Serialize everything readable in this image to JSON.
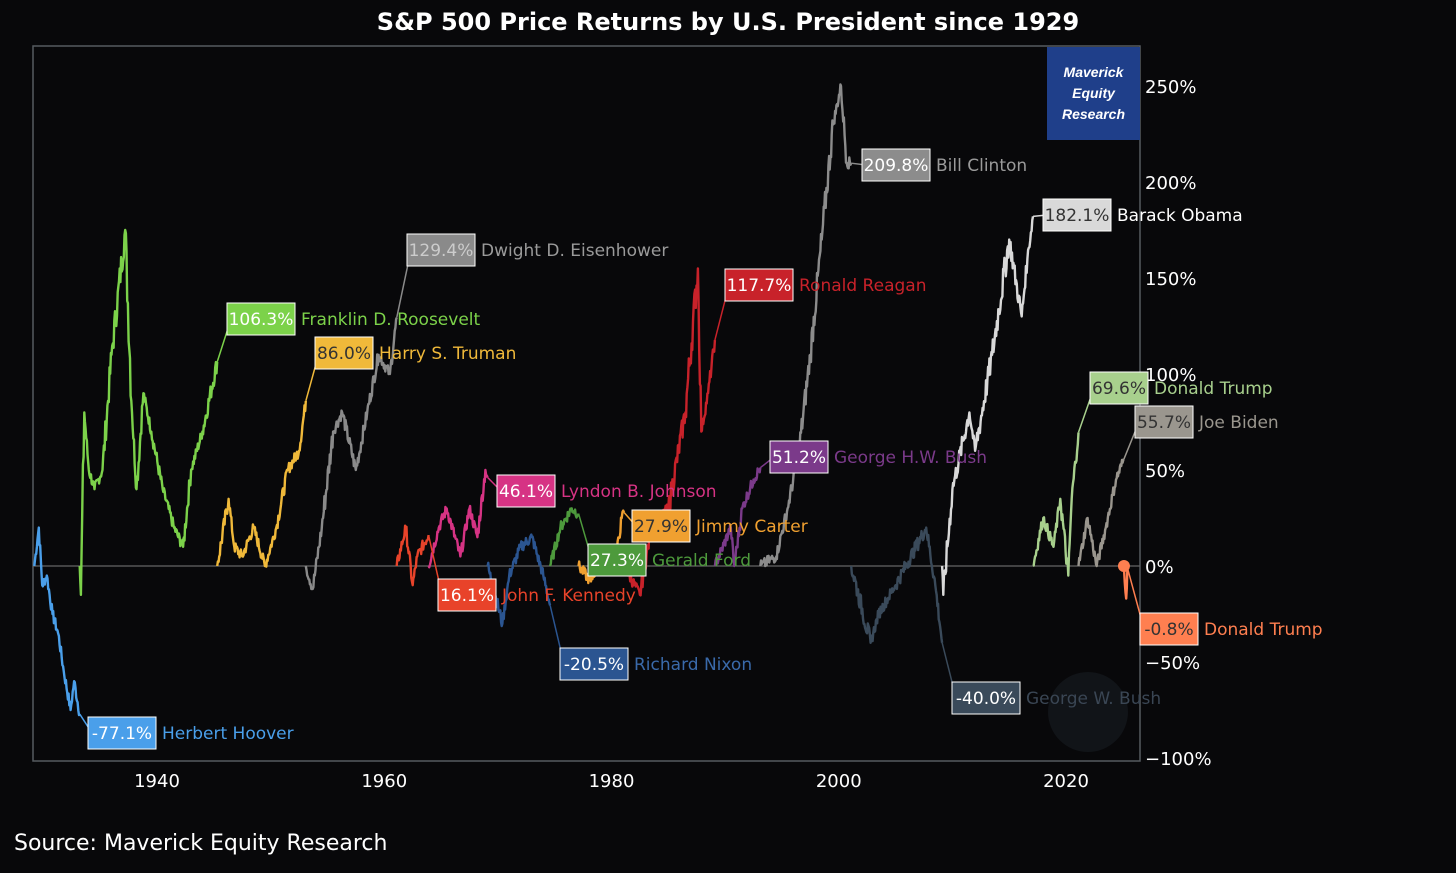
{
  "chart_data": {
    "type": "line",
    "title": "S&P 500 Price Returns by U.S. President since 1929",
    "source": "Source: Maverick Equity Research",
    "logo_text": "Maverick Equity Research",
    "xlabel": "",
    "ylabel": "",
    "xlim": [
      1929.1,
      2026.5
    ],
    "ylim": [
      -100,
      260
    ],
    "x_ticks": [
      {
        "v": 1940,
        "label": "1940"
      },
      {
        "v": 1960,
        "label": "1960"
      },
      {
        "v": 1980,
        "label": "1980"
      },
      {
        "v": 2000,
        "label": "2000"
      },
      {
        "v": 2020,
        "label": "2020"
      }
    ],
    "y_ticks": [
      {
        "v": 250,
        "label": "250%"
      },
      {
        "v": 200,
        "label": "200%"
      },
      {
        "v": 150,
        "label": "150%"
      },
      {
        "v": 100,
        "label": "100%"
      },
      {
        "v": 50,
        "label": "50%"
      },
      {
        "v": 0,
        "label": "0%"
      },
      {
        "v": -50,
        "label": "−50%"
      },
      {
        "v": -100,
        "label": "−100%"
      }
    ],
    "series": [
      {
        "name": "Herbert Hoover",
        "return_label": "-77.1%",
        "final": -77.1,
        "color": "#4a9fea",
        "points": [
          [
            1929.2,
            0
          ],
          [
            1929.6,
            20
          ],
          [
            1929.9,
            -10
          ],
          [
            1930.3,
            -5
          ],
          [
            1930.8,
            -25
          ],
          [
            1931.3,
            -35
          ],
          [
            1931.8,
            -55
          ],
          [
            1932.4,
            -75
          ],
          [
            1932.7,
            -60
          ],
          [
            1933.2,
            -77.1
          ]
        ]
      },
      {
        "name": "Franklin D. Roosevelt",
        "return_label": "106.3%",
        "final": 106.3,
        "color": "#7cd24a",
        "points": [
          [
            1933.2,
            0
          ],
          [
            1933.3,
            -15
          ],
          [
            1933.6,
            80
          ],
          [
            1934,
            50
          ],
          [
            1934.5,
            40
          ],
          [
            1935.2,
            50
          ],
          [
            1936,
            110
          ],
          [
            1937.2,
            175
          ],
          [
            1937.8,
            80
          ],
          [
            1938.2,
            40
          ],
          [
            1938.8,
            90
          ],
          [
            1939.5,
            70
          ],
          [
            1940.5,
            40
          ],
          [
            1941.5,
            20
          ],
          [
            1942.3,
            10
          ],
          [
            1943,
            50
          ],
          [
            1944,
            70
          ],
          [
            1945.3,
            106.3
          ]
        ]
      },
      {
        "name": "Harry S. Truman",
        "return_label": "86.0%",
        "final": 86.0,
        "color": "#f0b93a",
        "points": [
          [
            1945.3,
            0
          ],
          [
            1946.3,
            35
          ],
          [
            1946.8,
            10
          ],
          [
            1947.5,
            5
          ],
          [
            1948.5,
            20
          ],
          [
            1949.5,
            0
          ],
          [
            1950.5,
            20
          ],
          [
            1951.5,
            50
          ],
          [
            1952.5,
            60
          ],
          [
            1953.1,
            86
          ]
        ]
      },
      {
        "name": "Dwight D. Eisenhower",
        "return_label": "129.4%",
        "final": 129.4,
        "color": "#8a8a8a",
        "points": [
          [
            1953.1,
            0
          ],
          [
            1953.7,
            -12
          ],
          [
            1954.5,
            20
          ],
          [
            1955.5,
            70
          ],
          [
            1956.3,
            80
          ],
          [
            1957.5,
            50
          ],
          [
            1958.5,
            80
          ],
          [
            1959.5,
            110
          ],
          [
            1960.5,
            100
          ],
          [
            1961.1,
            129.4
          ]
        ]
      },
      {
        "name": "John F. Kennedy",
        "return_label": "16.1%",
        "final": 16.1,
        "color": "#e8432a",
        "points": [
          [
            1961.1,
            0
          ],
          [
            1961.9,
            20
          ],
          [
            1962.5,
            -10
          ],
          [
            1962.9,
            5
          ],
          [
            1963.9,
            16.1
          ]
        ]
      },
      {
        "name": "Lyndon B. Johnson",
        "return_label": "46.1%",
        "final": 46.1,
        "color": "#d63384",
        "points": [
          [
            1963.9,
            0
          ],
          [
            1964.8,
            20
          ],
          [
            1965.5,
            30
          ],
          [
            1966.7,
            5
          ],
          [
            1967.5,
            30
          ],
          [
            1968.2,
            15
          ],
          [
            1968.9,
            50
          ],
          [
            1969.1,
            46.1
          ]
        ]
      },
      {
        "name": "Richard Nixon",
        "return_label": "-20.5%",
        "final": -20.5,
        "color": "#2b5591",
        "points": [
          [
            1969.1,
            0
          ],
          [
            1970.4,
            -30
          ],
          [
            1971,
            -5
          ],
          [
            1972,
            10
          ],
          [
            1973,
            15
          ],
          [
            1974,
            -5
          ],
          [
            1974.6,
            -20.5
          ]
        ]
      },
      {
        "name": "Gerald Ford",
        "return_label": "27.3%",
        "final": 27.3,
        "color": "#4d9a3c",
        "points": [
          [
            1974.6,
            0
          ],
          [
            1975.5,
            20
          ],
          [
            1976.5,
            30
          ],
          [
            1977.1,
            27.3
          ]
        ]
      },
      {
        "name": "Jimmy Carter",
        "return_label": "27.9%",
        "final": 27.9,
        "color": "#f0a030",
        "points": [
          [
            1977.1,
            0
          ],
          [
            1978.2,
            -8
          ],
          [
            1979,
            5
          ],
          [
            1980.3,
            0
          ],
          [
            1980.9,
            25
          ],
          [
            1981.1,
            27.9
          ]
        ]
      },
      {
        "name": "Ronald Reagan",
        "return_label": "117.7%",
        "final": 117.7,
        "color": "#c8222a",
        "points": [
          [
            1981.1,
            0
          ],
          [
            1982.5,
            -15
          ],
          [
            1983.5,
            20
          ],
          [
            1985,
            30
          ],
          [
            1986.5,
            80
          ],
          [
            1987.6,
            155
          ],
          [
            1987.9,
            70
          ],
          [
            1988.5,
            90
          ],
          [
            1989.1,
            117.7
          ]
        ]
      },
      {
        "name": "George H.W. Bush",
        "return_label": "51.2%",
        "final": 51.2,
        "color": "#7b3a8a",
        "points": [
          [
            1989.1,
            0
          ],
          [
            1990.5,
            20
          ],
          [
            1990.8,
            0
          ],
          [
            1991.5,
            30
          ],
          [
            1992.5,
            45
          ],
          [
            1993.1,
            51.2
          ]
        ]
      },
      {
        "name": "Bill Clinton",
        "return_label": "209.8%",
        "final": 209.8,
        "color": "#8c8c8c",
        "points": [
          [
            1993.1,
            0
          ],
          [
            1994.5,
            5
          ],
          [
            1995.5,
            30
          ],
          [
            1996.5,
            60
          ],
          [
            1997.5,
            110
          ],
          [
            1998.5,
            170
          ],
          [
            1999.5,
            230
          ],
          [
            2000.2,
            250
          ],
          [
            2000.7,
            210
          ],
          [
            2001.1,
            209.8
          ]
        ]
      },
      {
        "name": "George W. Bush",
        "return_label": "-40.0%",
        "final": -40.0,
        "color": "#3a4a5a",
        "points": [
          [
            2001.1,
            0
          ],
          [
            2002.8,
            -40
          ],
          [
            2003.5,
            -25
          ],
          [
            2005,
            -10
          ],
          [
            2007.7,
            20
          ],
          [
            2008.5,
            -10
          ],
          [
            2009.1,
            -40
          ]
        ]
      },
      {
        "name": "Barack Obama",
        "return_label": "182.1%",
        "final": 182.1,
        "color": "#d9d9d9",
        "points": [
          [
            2009.1,
            0
          ],
          [
            2009.2,
            -15
          ],
          [
            2010,
            40
          ],
          [
            2011.5,
            80
          ],
          [
            2012,
            60
          ],
          [
            2013.5,
            110
          ],
          [
            2015,
            170
          ],
          [
            2016.1,
            130
          ],
          [
            2016.6,
            160
          ],
          [
            2017.1,
            182.1
          ]
        ]
      },
      {
        "name": "Donald Trump",
        "return_label": "69.6%",
        "final": 69.6,
        "color": "#a8d08d",
        "points": [
          [
            2017.1,
            0
          ],
          [
            2018,
            25
          ],
          [
            2018.9,
            10
          ],
          [
            2019.5,
            35
          ],
          [
            2020.2,
            -5
          ],
          [
            2020.5,
            35
          ],
          [
            2021.1,
            69.6
          ]
        ]
      },
      {
        "name": "Joe Biden",
        "return_label": "55.7%",
        "final": 55.7,
        "color": "#9a968e",
        "points": [
          [
            2021.1,
            0
          ],
          [
            2021.9,
            25
          ],
          [
            2022.7,
            0
          ],
          [
            2023.5,
            20
          ],
          [
            2024.4,
            45
          ],
          [
            2025.1,
            55.7
          ]
        ]
      },
      {
        "name": "Donald Trump",
        "return_label": "-0.8%",
        "final": -0.8,
        "color": "#ff7f50",
        "points": [
          [
            2025.1,
            0
          ],
          [
            2025.3,
            -17
          ],
          [
            2025.4,
            -0.8
          ]
        ]
      }
    ]
  }
}
